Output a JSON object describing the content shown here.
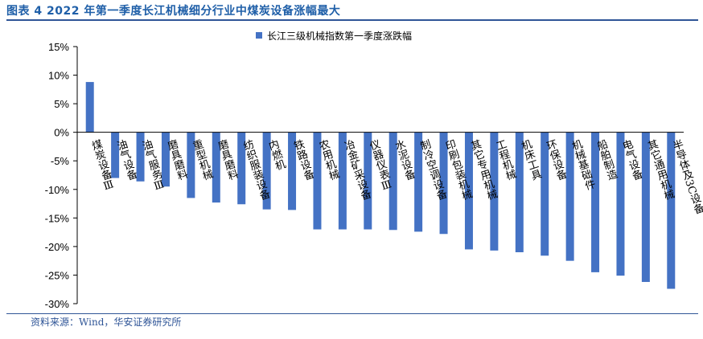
{
  "title": "图表 4 2022 年第一季度长江机械细分行业中煤炭设备涨幅最大",
  "source": "资料来源：Wind，华安证券研究所",
  "colors": {
    "bar": "#4472c4",
    "title": "#1f5fa8",
    "rule": "#2f5597"
  },
  "chart_data": {
    "type": "bar",
    "title": "",
    "xlabel": "",
    "ylabel": "",
    "ylim": [
      -30,
      15
    ],
    "yticks": [
      "15%",
      "10%",
      "5%",
      "0%",
      "-5%",
      "-10%",
      "-15%",
      "-20%",
      "-25%",
      "-30%"
    ],
    "ytick_values": [
      15,
      10,
      5,
      0,
      -5,
      -10,
      -15,
      -20,
      -25,
      -30
    ],
    "grid": false,
    "legend_position": "top",
    "categories": [
      "煤炭设备Ⅲ",
      "油气设备",
      "油气服务Ⅲ",
      "磨具磨料",
      "重型机械",
      "磨具磨料",
      "纺织服装设备",
      "内燃机",
      "铁路设备",
      "农用机械",
      "冶金矿采设备",
      "仪器仪表Ⅲ",
      "水泥设备",
      "制冷空调设备",
      "印刷包装机械",
      "其它专用机械",
      "工程机械",
      "机床工具",
      "环保设备",
      "机械基础件",
      "船舶制造",
      "电气设备",
      "其它通用机械",
      "半导体及3C设备"
    ],
    "series": [
      {
        "name": "长江三级机械指数第一季度涨跌幅",
        "values": [
          8.8,
          -8.0,
          -8.6,
          -9.5,
          -11.5,
          -12.3,
          -12.6,
          -13.5,
          -13.6,
          -17.0,
          -17.0,
          -17.0,
          -17.1,
          -17.4,
          -17.8,
          -20.5,
          -20.7,
          -21.0,
          -21.6,
          -22.5,
          -24.5,
          -25.1,
          -26.2,
          -27.4
        ]
      }
    ]
  }
}
